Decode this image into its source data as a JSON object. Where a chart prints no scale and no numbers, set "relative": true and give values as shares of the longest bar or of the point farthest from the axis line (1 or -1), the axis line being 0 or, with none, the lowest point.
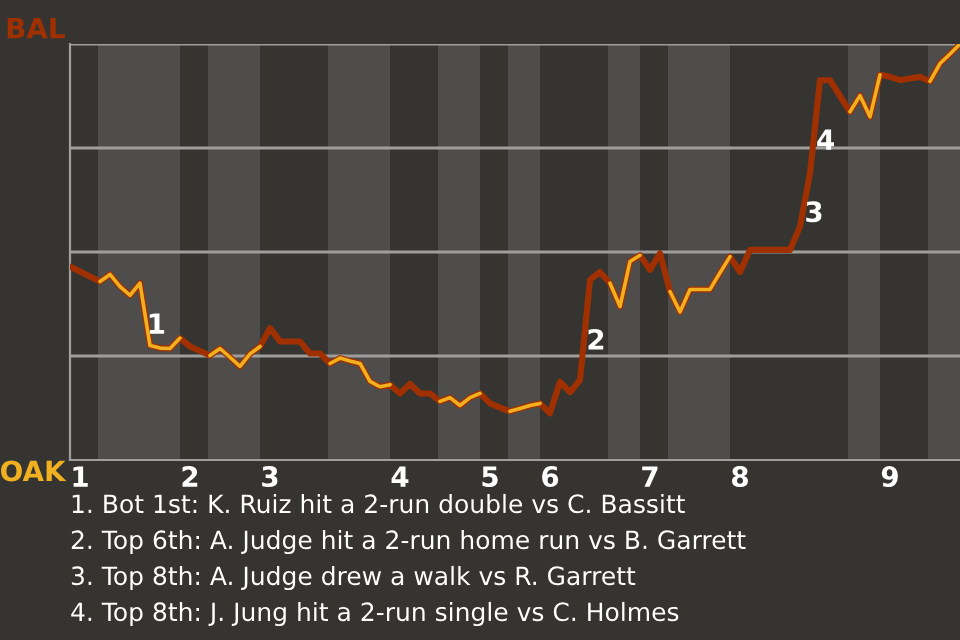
{
  "chart_data": {
    "type": "line",
    "relative": true,
    "categories": [
      null,
      "1",
      null,
      null,
      null,
      null,
      null,
      null,
      null,
      null,
      null,
      null,
      "2",
      null,
      null,
      null,
      null,
      null,
      null,
      null,
      "3",
      null,
      null,
      null,
      null,
      null,
      null,
      null,
      null,
      null,
      null,
      null,
      null,
      "4",
      null,
      null,
      null,
      null,
      null,
      null,
      null,
      null,
      "5",
      null,
      null,
      null,
      null,
      null,
      "6",
      null,
      null,
      null,
      null,
      null,
      null,
      null,
      null,
      null,
      "7",
      null,
      null,
      null,
      null,
      null,
      null,
      null,
      null,
      "8",
      null,
      null,
      null,
      null,
      null,
      null,
      null,
      null,
      null,
      null,
      null,
      null,
      null,
      null,
      "9",
      null,
      null,
      null,
      null,
      null,
      null,
      null
    ],
    "series": [
      {
        "color": "#a03000",
        "values": [
          0.465,
          0.453,
          0.441,
          0.429,
          0.446,
          0.417,
          0.396,
          0.425,
          0.275,
          0.269,
          0.268,
          0.293,
          0.273,
          0.262,
          0.251,
          0.268,
          0.247,
          0.225,
          0.255,
          0.273,
          0.317,
          0.285,
          0.285,
          0.285,
          0.256,
          0.256,
          0.232,
          0.245,
          0.238,
          0.232,
          0.189,
          0.176,
          0.181,
          0.16,
          0.183,
          0.16,
          0.16,
          0.141,
          0.15,
          0.131,
          0.15,
          0.16,
          0.136,
          0.126,
          0.117,
          0.124,
          0.131,
          0.136,
          0.112,
          0.188,
          0.163,
          0.192,
          0.433,
          0.452,
          0.425,
          0.369,
          0.477,
          0.492,
          0.457,
          0.497,
          0.405,
          0.356,
          0.41,
          0.41,
          0.41,
          0.45,
          0.489,
          0.452,
          0.505,
          0.505,
          0.505,
          0.505,
          0.505,
          0.561,
          0.689,
          0.913,
          0.913,
          0.875,
          0.837,
          0.876,
          0.825,
          0.926,
          0.921,
          0.913,
          0.917,
          0.921,
          0.91,
          0.953,
          0.976,
          1.0
        ]
      },
      {
        "color": "#f0b020",
        "values": [
          null,
          null,
          null,
          0.429,
          0.446,
          0.417,
          0.396,
          0.425,
          0.275,
          0.269,
          0.268,
          0.293,
          null,
          null,
          0.251,
          0.268,
          0.247,
          0.225,
          0.255,
          0.273,
          null,
          null,
          null,
          null,
          null,
          null,
          0.232,
          0.245,
          0.238,
          0.232,
          0.189,
          0.176,
          0.181,
          null,
          null,
          null,
          null,
          0.141,
          0.15,
          0.131,
          0.15,
          0.16,
          null,
          null,
          0.117,
          0.124,
          0.131,
          0.136,
          null,
          null,
          null,
          null,
          null,
          null,
          0.425,
          0.369,
          0.477,
          0.492,
          null,
          null,
          0.405,
          0.356,
          0.41,
          0.41,
          0.41,
          0.45,
          0.489,
          null,
          null,
          null,
          null,
          null,
          null,
          null,
          null,
          null,
          null,
          null,
          0.837,
          0.876,
          0.825,
          0.926,
          null,
          null,
          null,
          null,
          0.91,
          0.953,
          0.976,
          1.0
        ]
      }
    ],
    "ref_lines": [
      {
        "axis": "y",
        "value": 0.25,
        "color": "#a09e9c"
      },
      {
        "axis": "y",
        "value": 0.5,
        "color": "#a09e9c"
      },
      {
        "axis": "y",
        "value": 0.75,
        "color": "#a09e9c"
      },
      {
        "axis": "y",
        "value": 1.0,
        "color": "#a09e9c"
      }
    ],
    "annotations": [
      "BAL",
      "OAK",
      "1",
      "2",
      "3",
      "4",
      "1. Bot 1st: K. Ruiz hit a 2-run double vs C. Bassitt",
      "2. Top 6th: A. Judge hit a 2-run home run vs B. Garrett",
      "3. Top 8th: A. Judge drew a walk vs R. Garrett",
      "4. Top 8th: J. Jung hit a 2-run single vs C. Holmes"
    ],
    "marker": "none",
    "line_style": "solid"
  }
}
